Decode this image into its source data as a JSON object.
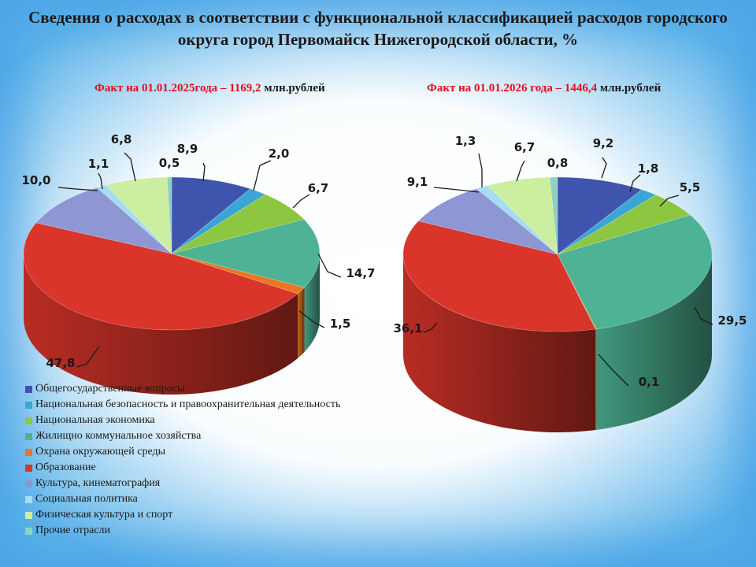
{
  "title": "Сведения о расходах в соответствии с функциональной классификацией расходов городского округа город Первомайск  Нижегородской области, %",
  "facts": [
    {
      "red": "Факт на 01.01.2025года – 1169,2",
      "rest": " млн.рублей"
    },
    {
      "red": "Факт на 01.01.2026 года – 1446,4",
      "rest": " млн.рублей"
    }
  ],
  "chart_data": [
    {
      "type": "pie",
      "categories": [
        "Общегосударственные вопросы",
        "Национальная безопасность и правоохранительная деятельность",
        "Национальная экономика",
        "Жилищно коммунальное хозяйства",
        "Охрана окружающей среды",
        "Образование",
        "Культура, кинематография",
        "Социальная политика",
        "Физическая культура и спорт",
        "Прочие отрасли"
      ],
      "values": [
        8.9,
        2.0,
        6.7,
        14.7,
        1.5,
        47.8,
        10.0,
        1.1,
        6.8,
        0.5
      ],
      "labels": [
        "8,9",
        "2,0",
        "6,7",
        "14,7",
        "1,5",
        "47,8",
        "10,0",
        "1,1",
        "6,8",
        "0,5"
      ]
    },
    {
      "type": "pie",
      "categories": [
        "Общегосударственные вопросы",
        "Национальная безопасность и правоохранительная деятельность",
        "Национальная экономика",
        "Жилищно коммунальное хозяйства",
        "Охрана окружающей среды",
        "Образование",
        "Культура, кинематография",
        "Социальная политика",
        "Физическая культура и спорт",
        "Прочие отрасли"
      ],
      "values": [
        9.2,
        1.8,
        5.5,
        29.5,
        0.1,
        36.1,
        9.1,
        1.3,
        6.7,
        0.8
      ],
      "labels": [
        "9,2",
        "1,8",
        "5,5",
        "29,5",
        "0,1",
        "36,1",
        "9,1",
        "1,3",
        "6,7",
        "0,8"
      ]
    }
  ],
  "legend": [
    {
      "label": "Общегосударственные вопросы",
      "color": "#3f55ad"
    },
    {
      "label": "Национальная безопасность и правоохранительная деятельность",
      "color": "#3aa5d6"
    },
    {
      "label": "Национальная экономика",
      "color": "#8dc641"
    },
    {
      "label": "Жилищно коммунальное хозяйства",
      "color": "#4db394"
    },
    {
      "label": "Охрана окружающей среды",
      "color": "#e87722"
    },
    {
      "label": "Образование",
      "color": "#d9352a"
    },
    {
      "label": "Культура, кинематография",
      "color": "#8f96d4"
    },
    {
      "label": "Социальная политика",
      "color": "#a5dcf0"
    },
    {
      "label": "Физическая культура и спорт",
      "color": "#cbeea0"
    },
    {
      "label": "Прочие отрасли",
      "color": "#8fd1c0"
    }
  ]
}
